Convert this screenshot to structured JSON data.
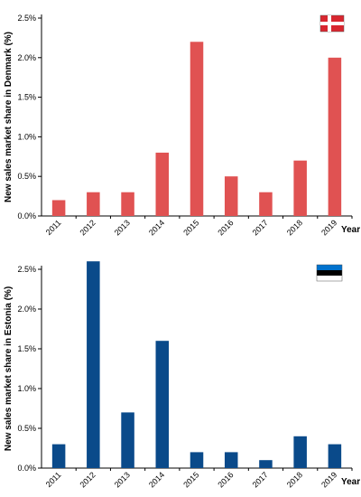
{
  "chart_data": [
    {
      "type": "bar",
      "categories": [
        "2011",
        "2012",
        "2013",
        "2014",
        "2015",
        "2016",
        "2017",
        "2018",
        "2019"
      ],
      "values": [
        0.2,
        0.3,
        0.3,
        0.8,
        2.2,
        0.5,
        0.3,
        0.7,
        2.0
      ],
      "ylabel": "New sales market share in Denmark (%)",
      "xlabel": "Year",
      "ylim": [
        0,
        2.5
      ],
      "yticks": [
        "0.0%",
        "0.5%",
        "1.0%",
        "1.5%",
        "2.0%",
        "2.5%"
      ],
      "grid": false,
      "bar_color": "#e05252",
      "flag_icon": "denmark-flag-icon"
    },
    {
      "type": "bar",
      "categories": [
        "2011",
        "2012",
        "2013",
        "2014",
        "2015",
        "2016",
        "2017",
        "2018",
        "2019"
      ],
      "values": [
        0.3,
        2.6,
        0.7,
        1.6,
        0.2,
        0.2,
        0.1,
        0.4,
        0.3
      ],
      "ylabel": "New sales market share in Estonia (%)",
      "xlabel": "Year",
      "ylim": [
        0,
        2.5
      ],
      "yticks": [
        "0.0%",
        "0.5%",
        "1.0%",
        "1.5%",
        "2.0%",
        "2.5%"
      ],
      "grid": false,
      "bar_color": "#0a4a8a",
      "flag_icon": "estonia-flag-icon"
    }
  ]
}
